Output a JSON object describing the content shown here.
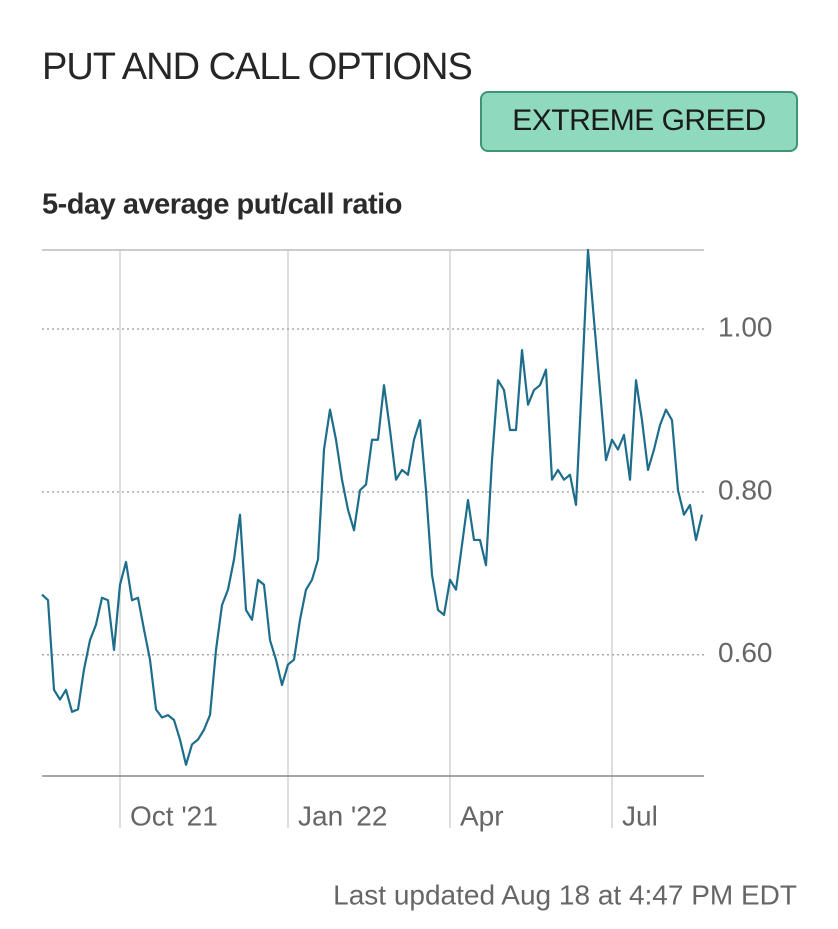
{
  "header": {
    "title": "PUT AND CALL OPTIONS",
    "badge": "EXTREME GREED"
  },
  "chart_data": {
    "type": "line",
    "title": "5-day average put/call ratio",
    "series": [
      {
        "name": "5-day average put/call ratio",
        "color": "#1d6d8b",
        "values": [
          0.674,
          0.667,
          0.557,
          0.545,
          0.557,
          0.53,
          0.533,
          0.582,
          0.618,
          0.637,
          0.67,
          0.667,
          0.606,
          0.686,
          0.714,
          0.667,
          0.67,
          0.631,
          0.594,
          0.533,
          0.523,
          0.526,
          0.52,
          0.496,
          0.465,
          0.49,
          0.496,
          0.508,
          0.526,
          0.606,
          0.661,
          0.68,
          0.717,
          0.772,
          0.655,
          0.643,
          0.692,
          0.686,
          0.618,
          0.594,
          0.563,
          0.588,
          0.594,
          0.643,
          0.68,
          0.692,
          0.717,
          0.852,
          0.901,
          0.864,
          0.815,
          0.778,
          0.753,
          0.802,
          0.809,
          0.864,
          0.864,
          0.931,
          0.876,
          0.815,
          0.827,
          0.821,
          0.864,
          0.888,
          0.802,
          0.698,
          0.655,
          0.649,
          0.692,
          0.68,
          0.735,
          0.79,
          0.741,
          0.741,
          0.71,
          0.839,
          0.937,
          0.925,
          0.876,
          0.876,
          0.974,
          0.907,
          0.925,
          0.931,
          0.95,
          0.815,
          0.827,
          0.815,
          0.821,
          0.784,
          0.937,
          1.097,
          1.011,
          0.925,
          0.839,
          0.864,
          0.852,
          0.87,
          0.815,
          0.937,
          0.888,
          0.827,
          0.852,
          0.882,
          0.901,
          0.888,
          0.802,
          0.772,
          0.784,
          0.741,
          0.772
        ]
      }
    ],
    "xlim": [
      0,
      110
    ],
    "xticks": [
      {
        "value": 13,
        "label": "Oct '21"
      },
      {
        "value": 41,
        "label": "Jan '22"
      },
      {
        "value": 68,
        "label": "Apr"
      },
      {
        "value": 95,
        "label": "Jul"
      }
    ],
    "ylim": [
      0.45,
      1.1
    ],
    "yticks": [
      {
        "value": 0.6,
        "label": "0.60"
      },
      {
        "value": 0.8,
        "label": "0.80"
      },
      {
        "value": 1.0,
        "label": "1.00"
      }
    ],
    "grid": true
  },
  "footer": "Last updated Aug 18 at 4:47 PM EDT"
}
